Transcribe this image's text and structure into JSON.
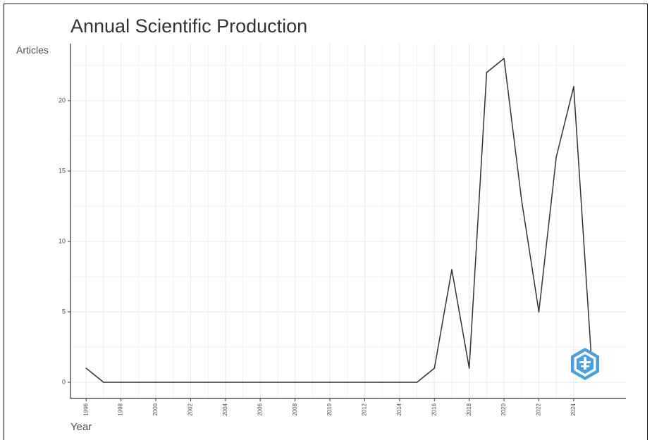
{
  "chart_data": {
    "type": "line",
    "title": "Annual Scientific Production",
    "xlabel": "Year",
    "ylabel": "Articles",
    "x": [
      1996,
      1997,
      1998,
      1999,
      2000,
      2001,
      2002,
      2003,
      2004,
      2005,
      2006,
      2007,
      2008,
      2009,
      2010,
      2011,
      2012,
      2013,
      2014,
      2015,
      2016,
      2017,
      2018,
      2019,
      2020,
      2021,
      2022,
      2023,
      2024,
      2025
    ],
    "series": [
      {
        "values": [
          1,
          0,
          0,
          0,
          0,
          0,
          0,
          0,
          0,
          0,
          0,
          0,
          0,
          0,
          0,
          0,
          0,
          0,
          0,
          0,
          1,
          8,
          1,
          22,
          23,
          13,
          5,
          16,
          21,
          2
        ]
      }
    ],
    "xticks": [
      "1996",
      "1998",
      "2000",
      "2002",
      "2004",
      "2006",
      "2008",
      "2010",
      "2012",
      "2014",
      "2016",
      "2018",
      "2020",
      "2022",
      "2024"
    ],
    "yticks": [
      "0",
      "5",
      "10",
      "15",
      "20"
    ],
    "xlim": [
      1995.1,
      2027.0
    ],
    "ylim": [
      -1.15,
      24.05
    ],
    "grid": true,
    "line_color": "#333333",
    "grid_color": "#ebebeb",
    "logo": {
      "icon": "bibliometrix-logo-icon",
      "color": "#4a9fe0"
    }
  }
}
